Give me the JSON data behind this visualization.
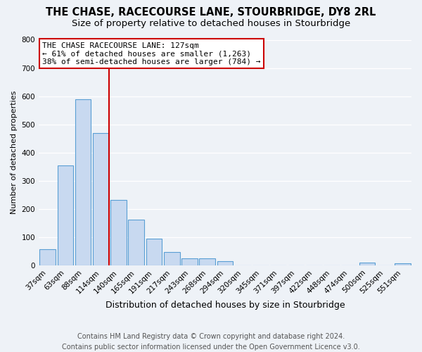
{
  "title": "THE CHASE, RACECOURSE LANE, STOURBRIDGE, DY8 2RL",
  "subtitle": "Size of property relative to detached houses in Stourbridge",
  "xlabel": "Distribution of detached houses by size in Stourbridge",
  "ylabel": "Number of detached properties",
  "categories": [
    "37sqm",
    "63sqm",
    "88sqm",
    "114sqm",
    "140sqm",
    "165sqm",
    "191sqm",
    "217sqm",
    "243sqm",
    "268sqm",
    "294sqm",
    "320sqm",
    "345sqm",
    "371sqm",
    "397sqm",
    "422sqm",
    "448sqm",
    "474sqm",
    "500sqm",
    "525sqm",
    "551sqm"
  ],
  "values": [
    57,
    355,
    588,
    470,
    233,
    162,
    95,
    48,
    25,
    25,
    16,
    0,
    0,
    0,
    0,
    0,
    0,
    0,
    10,
    0,
    8
  ],
  "bar_color": "#c8d9f0",
  "bar_edge_color": "#5a9fd4",
  "marker_line_color": "#cc0000",
  "annotation_title": "THE CHASE RACECOURSE LANE: 127sqm",
  "annotation_line1": "← 61% of detached houses are smaller (1,263)",
  "annotation_line2": "38% of semi-detached houses are larger (784) →",
  "annotation_box_color": "#ffffff",
  "annotation_box_edge_color": "#cc0000",
  "ylim": [
    0,
    800
  ],
  "yticks": [
    0,
    100,
    200,
    300,
    400,
    500,
    600,
    700,
    800
  ],
  "background_color": "#eef2f7",
  "footer_line1": "Contains HM Land Registry data © Crown copyright and database right 2024.",
  "footer_line2": "Contains public sector information licensed under the Open Government Licence v3.0.",
  "title_fontsize": 10.5,
  "subtitle_fontsize": 9.5,
  "xlabel_fontsize": 9,
  "ylabel_fontsize": 8,
  "tick_fontsize": 7.5,
  "annotation_fontsize": 8,
  "footer_fontsize": 7
}
